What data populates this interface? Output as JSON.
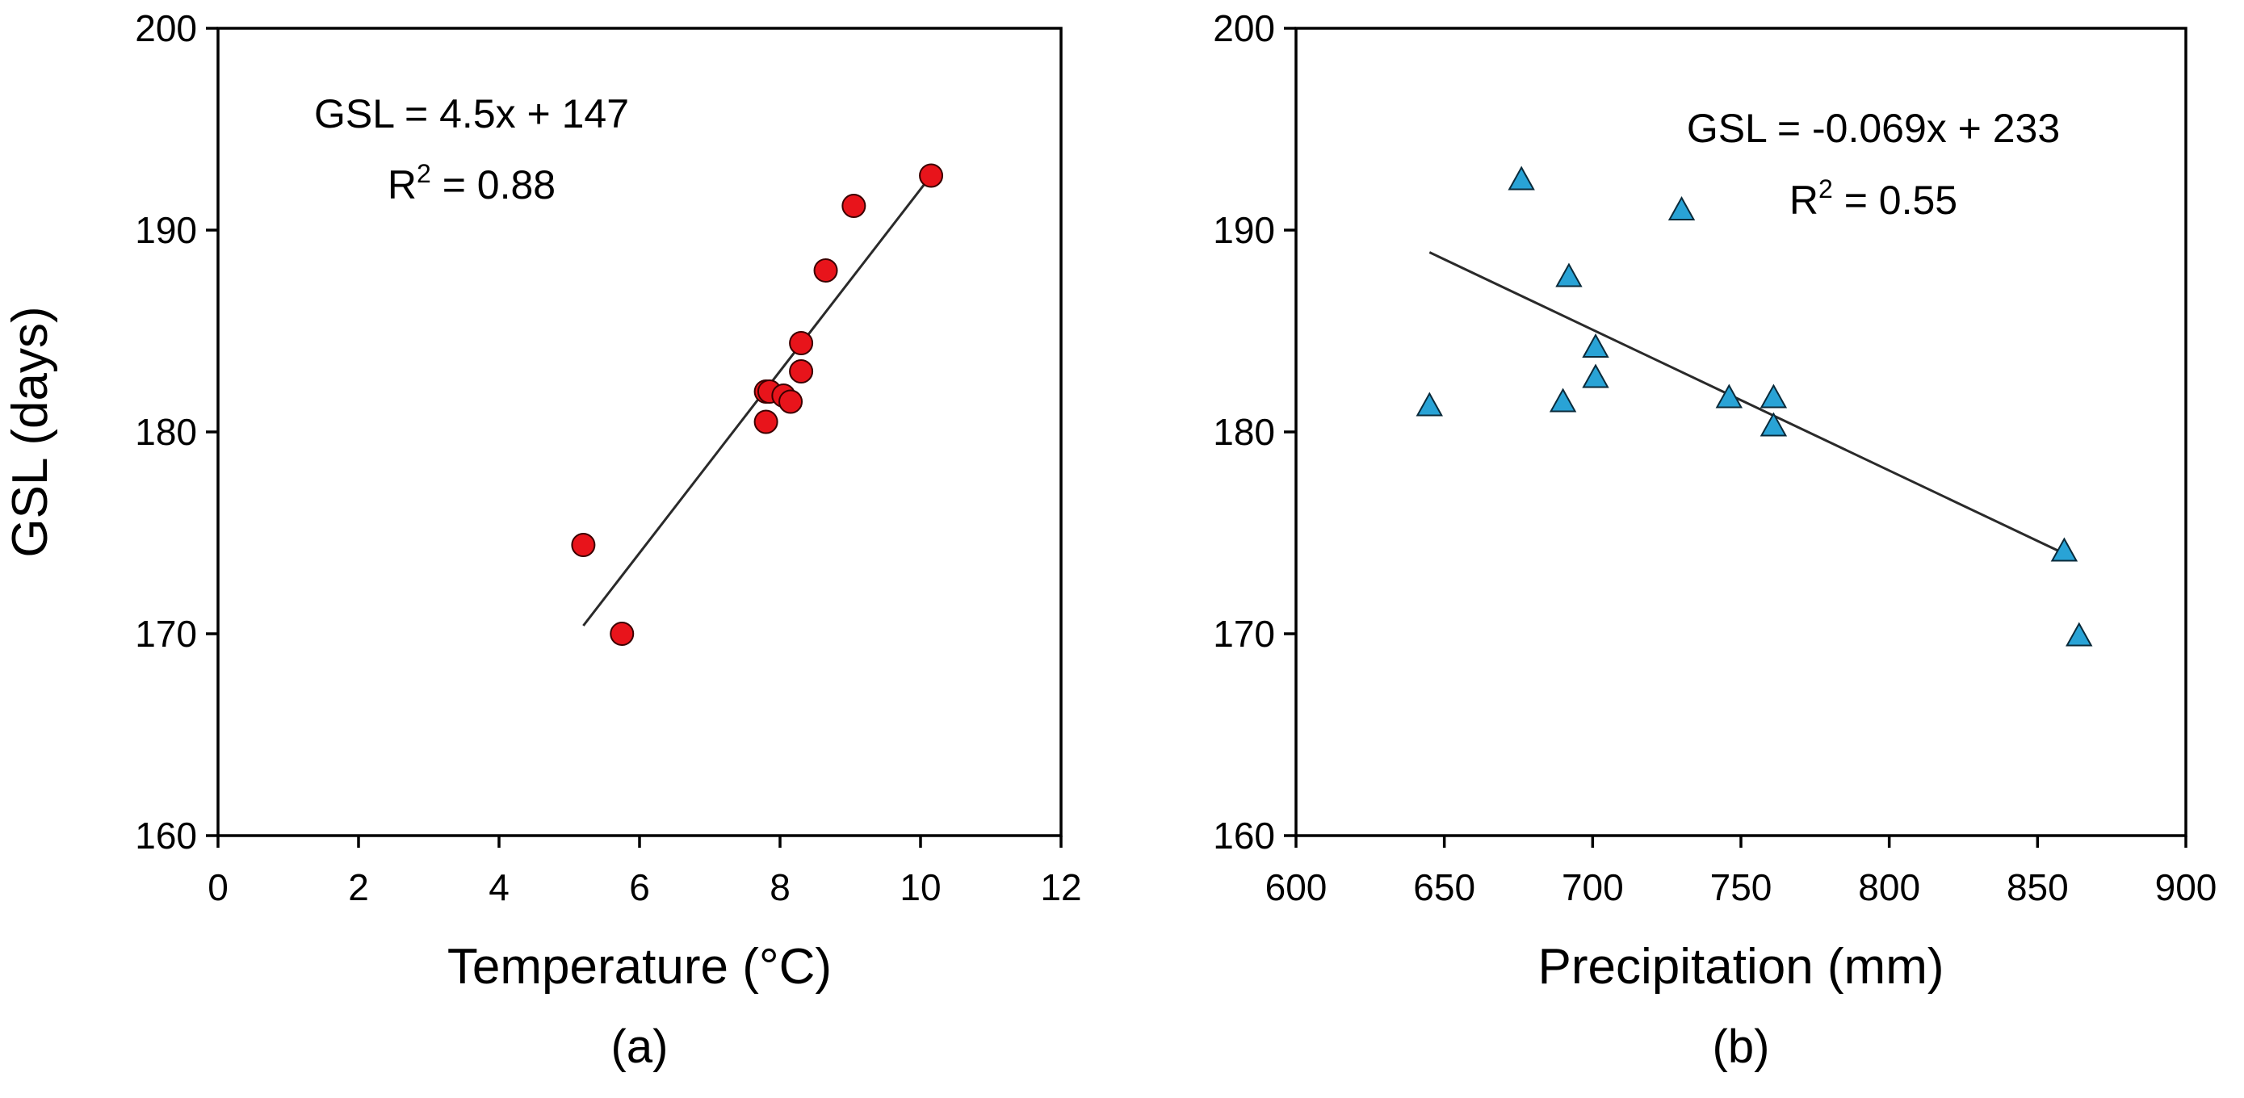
{
  "chart_data": [
    {
      "type": "scatter",
      "panel_label": "(a)",
      "title": "",
      "xlabel": "Temperature (°C)",
      "ylabel": "GSL (days)",
      "xlim": [
        0,
        12
      ],
      "ylim": [
        160,
        200
      ],
      "xticks": [
        "0",
        "2",
        "4",
        "6",
        "8",
        "10",
        "12"
      ],
      "yticks": [
        "160",
        "170",
        "180",
        "190",
        "200"
      ],
      "marker": "circle",
      "marker_color": "#e8141b",
      "points": [
        {
          "x": 5.2,
          "y": 174.4
        },
        {
          "x": 5.75,
          "y": 170.0
        },
        {
          "x": 7.8,
          "y": 182.0
        },
        {
          "x": 7.8,
          "y": 180.5
        },
        {
          "x": 7.85,
          "y": 182.0
        },
        {
          "x": 8.05,
          "y": 181.8
        },
        {
          "x": 8.15,
          "y": 181.5
        },
        {
          "x": 8.3,
          "y": 184.4
        },
        {
          "x": 8.3,
          "y": 183.0
        },
        {
          "x": 8.65,
          "y": 188.0
        },
        {
          "x": 9.05,
          "y": 191.2
        },
        {
          "x": 10.15,
          "y": 192.7
        }
      ],
      "trendline": {
        "x": [
          5.2,
          10.15
        ],
        "y": [
          170.4,
          192.7
        ]
      },
      "equation": "GSL = 4.5x + 147",
      "r2_label": "R",
      "r2_sup": "2",
      "r2_value": " = 0.88"
    },
    {
      "type": "scatter",
      "panel_label": "(b)",
      "title": "",
      "xlabel": "Precipitation (mm)",
      "ylabel": "",
      "xlim": [
        600,
        900
      ],
      "ylim": [
        160,
        200
      ],
      "xticks": [
        "600",
        "650",
        "700",
        "750",
        "800",
        "850",
        "900"
      ],
      "yticks": [
        "160",
        "170",
        "180",
        "190",
        "200"
      ],
      "marker": "triangle",
      "marker_color": "#29a3d6",
      "points": [
        {
          "x": 645,
          "y": 181.3
        },
        {
          "x": 676,
          "y": 192.5
        },
        {
          "x": 690,
          "y": 181.5
        },
        {
          "x": 692,
          "y": 187.7
        },
        {
          "x": 701,
          "y": 184.2
        },
        {
          "x": 701,
          "y": 182.7
        },
        {
          "x": 730,
          "y": 191.0
        },
        {
          "x": 746,
          "y": 181.7
        },
        {
          "x": 761,
          "y": 181.7
        },
        {
          "x": 761,
          "y": 180.3
        },
        {
          "x": 859,
          "y": 174.1
        },
        {
          "x": 864,
          "y": 169.9
        }
      ],
      "trendline": {
        "x": [
          645,
          860
        ],
        "y": [
          188.9,
          173.9
        ]
      },
      "equation": "GSL = -0.069x + 233",
      "r2_label": "R",
      "r2_sup": "2",
      "r2_value": " = 0.55"
    }
  ]
}
